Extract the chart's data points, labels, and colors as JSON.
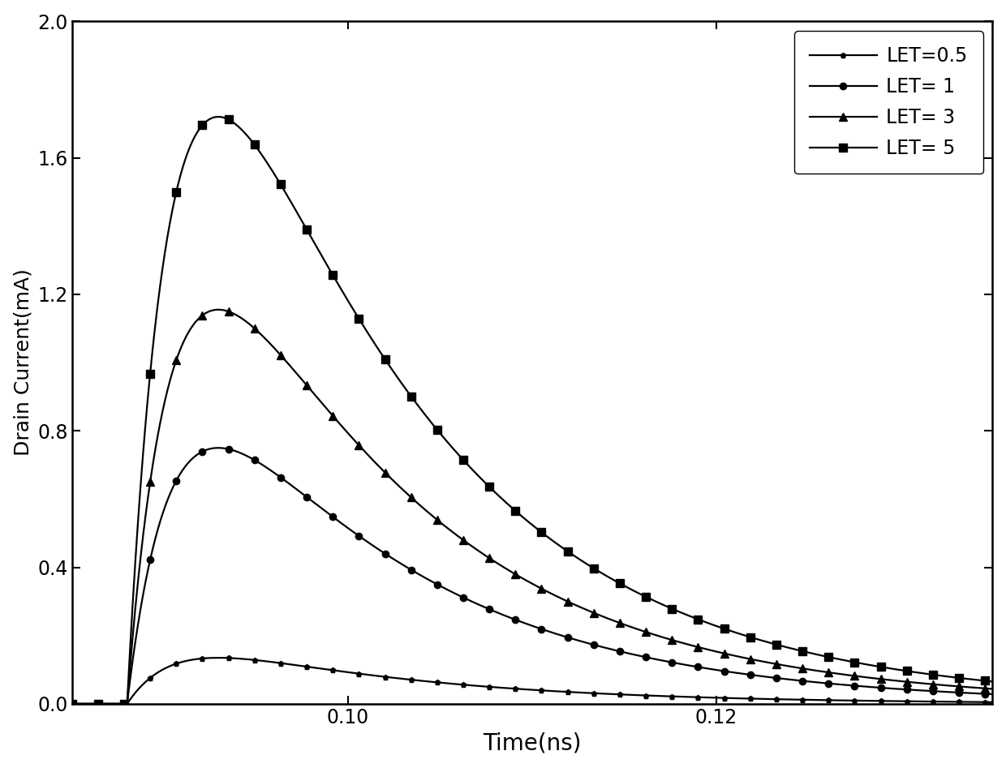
{
  "title": "",
  "xlabel": "Time(ns)",
  "ylabel": "Drain Current(mA)",
  "xlim": [
    0.085,
    0.135
  ],
  "ylim": [
    0.0,
    2.0
  ],
  "xticks": [
    0.1,
    0.12
  ],
  "yticks": [
    0.0,
    0.4,
    0.8,
    1.2,
    1.6,
    2.0
  ],
  "legend_labels": [
    "LET=0.5",
    "LET= 1",
    "LET= 3",
    "LET= 5"
  ],
  "LET_values": [
    0.5,
    1,
    3,
    5
  ],
  "peak_currents": [
    0.135,
    0.75,
    1.155,
    1.72
  ],
  "t0": 0.088,
  "tau_r": 0.0025,
  "tau_f": 0.012,
  "background_color": "#ffffff",
  "line_color": "#000000",
  "markers": [
    "p",
    "o",
    "^",
    "s"
  ],
  "marker_sizes": [
    5,
    6,
    7,
    7
  ],
  "linewidth": 1.6,
  "xlabel_fontsize": 20,
  "ylabel_fontsize": 18,
  "tick_fontsize": 17,
  "legend_fontsize": 17,
  "marker_every": 35
}
